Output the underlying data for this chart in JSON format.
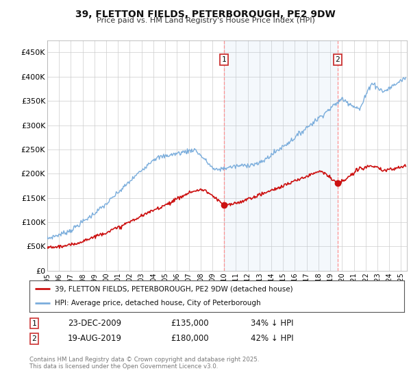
{
  "title": "39, FLETTON FIELDS, PETERBOROUGH, PE2 9DW",
  "subtitle": "Price paid vs. HM Land Registry's House Price Index (HPI)",
  "ylabel_ticks": [
    "£0",
    "£50K",
    "£100K",
    "£150K",
    "£200K",
    "£250K",
    "£300K",
    "£350K",
    "£400K",
    "£450K"
  ],
  "ytick_values": [
    0,
    50000,
    100000,
    150000,
    200000,
    250000,
    300000,
    350000,
    400000,
    450000
  ],
  "ylim": [
    0,
    475000
  ],
  "xlim_start": 1995.0,
  "xlim_end": 2025.5,
  "hpi_color": "#7aaddc",
  "price_color": "#cc1111",
  "transaction1_date": "23-DEC-2009",
  "transaction1_price": 135000,
  "transaction1_pct": "34% ↓ HPI",
  "transaction1_x": 2009.97,
  "transaction2_date": "19-AUG-2019",
  "transaction2_price": 180000,
  "transaction2_pct": "42% ↓ HPI",
  "transaction2_x": 2019.63,
  "legend_label1": "39, FLETTON FIELDS, PETERBOROUGH, PE2 9DW (detached house)",
  "legend_label2": "HPI: Average price, detached house, City of Peterborough",
  "footnote": "Contains HM Land Registry data © Crown copyright and database right 2025.\nThis data is licensed under the Open Government Licence v3.0.",
  "background_color": "#ffffff",
  "plot_bg_color": "#ffffff",
  "grid_color": "#cccccc",
  "span_color": "#ddeeff",
  "dashed_color": "#ff8888"
}
